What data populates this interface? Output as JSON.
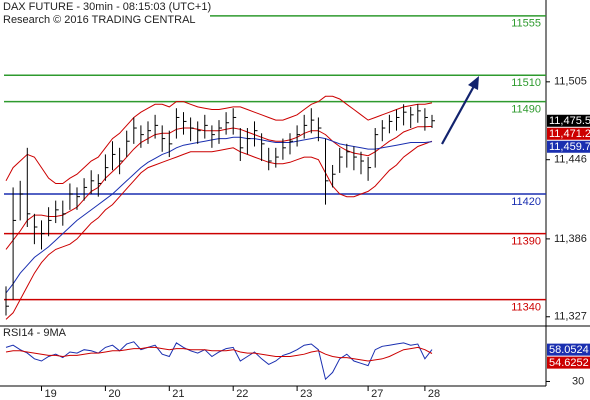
{
  "chart_data": {
    "type": "ohlc",
    "title": "DAX FUTURE - 30min - 08:15:03 (UTC+1)",
    "subtitle": "Research © 2016 TRADING CENTRAL",
    "color": "#000000",
    "categories": [
      null,
      null,
      null,
      null,
      null,
      "19",
      null,
      null,
      null,
      null,
      null,
      null,
      null,
      null,
      "20",
      null,
      null,
      null,
      null,
      null,
      null,
      null,
      null,
      "21",
      null,
      null,
      null,
      null,
      null,
      null,
      null,
      null,
      "22",
      null,
      null,
      null,
      null,
      null,
      null,
      null,
      null,
      "23",
      null,
      null,
      null,
      null,
      null,
      null,
      null,
      null,
      null,
      "27",
      null,
      null,
      null,
      null,
      null,
      null,
      null,
      "28",
      null
    ],
    "high": [
      11350,
      11425,
      11430,
      11455,
      11405,
      11400,
      11410,
      11415,
      11415,
      11428,
      11425,
      11432,
      11438,
      11435,
      11450,
      11460,
      11455,
      11468,
      11478,
      11472,
      11475,
      11480,
      11472,
      11468,
      11485,
      11482,
      11478,
      11475,
      11480,
      11472,
      11476,
      11482,
      11485,
      11470,
      11470,
      11475,
      11466,
      11455,
      11455,
      11462,
      11466,
      11472,
      11480,
      11485,
      11478,
      11462,
      11442,
      11455,
      11458,
      11456,
      11452,
      11448,
      11470,
      11476,
      11480,
      11484,
      11488,
      11486,
      11488,
      11485,
      11480
    ],
    "low": [
      11328,
      11340,
      11400,
      11395,
      11382,
      11378,
      11388,
      11398,
      11396,
      11408,
      11408,
      11415,
      11420,
      11418,
      11430,
      11438,
      11435,
      11448,
      11458,
      11455,
      11458,
      11462,
      11452,
      11448,
      11462,
      11465,
      11460,
      11458,
      11462,
      11455,
      11458,
      11465,
      11465,
      11445,
      11450,
      11456,
      11445,
      11438,
      11440,
      11446,
      11450,
      11456,
      11462,
      11466,
      11460,
      11412,
      11425,
      11436,
      11440,
      11438,
      11435,
      11430,
      11440,
      11460,
      11466,
      11468,
      11472,
      11470,
      11474,
      11468,
      11470
    ],
    "close": [
      11335,
      11400,
      11420,
      11405,
      11395,
      11390,
      11400,
      11408,
      11405,
      11420,
      11418,
      11425,
      11430,
      11428,
      11440,
      11450,
      11445,
      11460,
      11470,
      11465,
      11468,
      11472,
      11462,
      11458,
      11478,
      11475,
      11470,
      11468,
      11472,
      11465,
      11470,
      11474,
      11478,
      11455,
      11462,
      11468,
      11458,
      11445,
      11448,
      11455,
      11460,
      11465,
      11472,
      11476,
      11470,
      11430,
      11435,
      11448,
      11452,
      11448,
      11445,
      11440,
      11465,
      11470,
      11475,
      11478,
      11482,
      11480,
      11483,
      11478,
      11475.5
    ],
    "overlays": [
      {
        "color": "#cc0000",
        "values": [
          11430,
          11440,
          11445,
          11450,
          11448,
          11440,
          11432,
          11428,
          11428,
          11432,
          11435,
          11440,
          11445,
          11448,
          11455,
          11462,
          11466,
          11472,
          11478,
          11482,
          11485,
          11488,
          11488,
          11486,
          11490,
          11490,
          11488,
          11486,
          11485,
          11484,
          11484,
          11485,
          11486,
          11486,
          11484,
          11482,
          11480,
          11478,
          11476,
          11476,
          11478,
          11480,
          11484,
          11488,
          11490,
          11494,
          11494,
          11492,
          11488,
          11484,
          11480,
          11476,
          11478,
          11480,
          11482,
          11484,
          11486,
          11487,
          11488,
          11488,
          11489
        ]
      },
      {
        "color": "#cc0000",
        "values": [
          11325,
          11330,
          11340,
          11350,
          11360,
          11368,
          11374,
          11378,
          11380,
          11382,
          11386,
          11392,
          11398,
          11402,
          11408,
          11412,
          11418,
          11424,
          11430,
          11436,
          11440,
          11442,
          11444,
          11446,
          11448,
          11450,
          11452,
          11452,
          11452,
          11452,
          11453,
          11454,
          11455,
          11452,
          11450,
          11448,
          11446,
          11444,
          11443,
          11443,
          11444,
          11446,
          11448,
          11448,
          11446,
          11436,
          11426,
          11420,
          11418,
          11418,
          11420,
          11422,
          11426,
          11432,
          11438,
          11442,
          11448,
          11452,
          11456,
          11458,
          11460
        ]
      },
      {
        "color": "#cc0000",
        "values": [
          11378,
          11385,
          11392,
          11400,
          11404,
          11404,
          11403,
          11403,
          11404,
          11407,
          11410,
          11416,
          11422,
          11425,
          11432,
          11437,
          11442,
          11448,
          11454,
          11459,
          11462,
          11465,
          11466,
          11466,
          11469,
          11470,
          11470,
          11469,
          11468,
          11468,
          11468,
          11469,
          11470,
          11469,
          11467,
          11465,
          11463,
          11461,
          11460,
          11460,
          11461,
          11463,
          11466,
          11468,
          11468,
          11465,
          11460,
          11456,
          11453,
          11451,
          11450,
          11449,
          11452,
          11456,
          11460,
          11463,
          11467,
          11469,
          11471,
          11471,
          11471.2
        ]
      },
      {
        "color": "#1a2fb0",
        "values": [
          11345,
          11352,
          11360,
          11366,
          11372,
          11376,
          11380,
          11385,
          11390,
          11395,
          11400,
          11404,
          11408,
          11412,
          11416,
          11420,
          11425,
          11430,
          11435,
          11440,
          11444,
          11447,
          11450,
          11452,
          11455,
          11457,
          11458,
          11459,
          11460,
          11461,
          11462,
          11462,
          11463,
          11463,
          11462,
          11462,
          11461,
          11460,
          11459,
          11459,
          11459,
          11460,
          11461,
          11462,
          11463,
          11462,
          11460,
          11458,
          11457,
          11456,
          11455,
          11454,
          11454,
          11455,
          11456,
          11457,
          11458,
          11459,
          11459,
          11459,
          11459.7
        ]
      }
    ],
    "levels": [
      {
        "value": 11555,
        "color": "#2e9a2e"
      },
      {
        "value": 11510,
        "color": "#2e9a2e"
      },
      {
        "value": 11490,
        "color": "#2e9a2e"
      },
      {
        "value": 11420,
        "color": "#1a2fb0"
      },
      {
        "value": 11390,
        "color": "#cc0000"
      },
      {
        "value": 11340,
        "color": "#cc0000"
      }
    ],
    "markers": [
      {
        "value": 11475.5,
        "label": "11,475.5",
        "color": "#000000"
      },
      {
        "value": 11471.2,
        "label": "11,471.2",
        "color": "#cc0000"
      },
      {
        "value": 11459.7,
        "label": "11,459.7",
        "color": "#1a2fb0"
      }
    ],
    "ylim": [
      11320,
      11567
    ],
    "yticks": [
      {
        "value": 11505,
        "label": "11,505"
      },
      {
        "value": 11446,
        "label": "11,446"
      },
      {
        "value": 11386,
        "label": "11,386"
      },
      {
        "value": 11327,
        "label": "11,327"
      }
    ],
    "rsi": {
      "title": "RSI14 - 9MA",
      "ylim": [
        26,
        78
      ],
      "yticks": [
        30
      ],
      "series": [
        {
          "color": "#1a2fb0",
          "values": [
            60,
            62,
            58,
            55,
            50,
            48,
            52,
            54,
            51,
            56,
            55,
            58,
            57,
            55,
            60,
            62,
            57,
            63,
            65,
            58,
            60,
            62,
            54,
            52,
            64,
            60,
            57,
            55,
            58,
            52,
            56,
            59,
            60,
            48,
            52,
            56,
            50,
            45,
            48,
            53,
            55,
            58,
            62,
            63,
            58,
            32,
            38,
            50,
            54,
            48,
            46,
            44,
            58,
            61,
            62,
            63,
            64,
            62,
            63,
            50,
            58.0524
          ]
        },
        {
          "color": "#cc0000",
          "values": [
            56,
            57,
            57,
            56,
            55,
            54,
            53,
            53,
            52,
            53,
            53,
            54,
            55,
            55,
            56,
            57,
            57,
            58,
            59,
            59,
            60,
            60,
            59,
            58,
            59,
            59,
            58,
            58,
            58,
            57,
            57,
            57,
            58,
            56,
            55,
            55,
            54,
            53,
            52,
            52,
            52,
            53,
            54,
            56,
            57,
            54,
            52,
            51,
            51,
            50,
            49,
            48,
            49,
            50,
            52,
            55,
            58,
            59,
            60,
            58,
            54.6252
          ]
        }
      ],
      "markers": [
        {
          "value": 58.0524,
          "label": "58.0524",
          "color": "#1a2fb0"
        },
        {
          "value": 54.6252,
          "label": "54.6252",
          "color": "#cc0000"
        }
      ]
    }
  }
}
